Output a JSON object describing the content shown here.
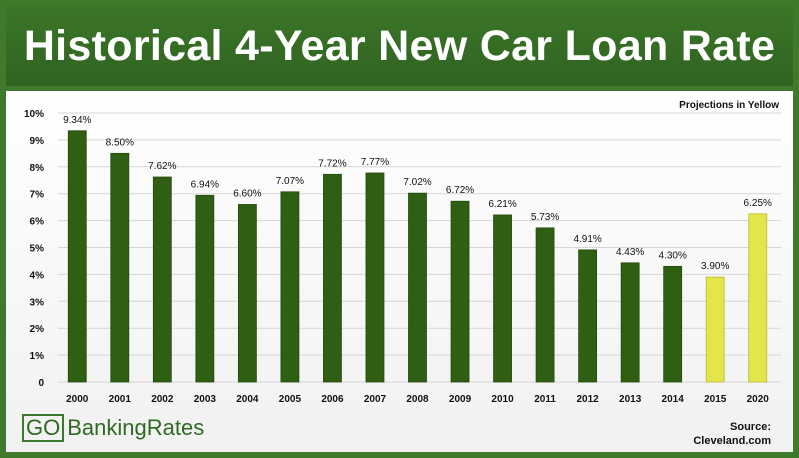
{
  "title": "Historical 4-Year New Car Loan Rate",
  "projection_note": "Projections in Yellow",
  "logo": {
    "go": "GO",
    "rest": "BankingRates"
  },
  "source": {
    "line1": "Source:",
    "line2": "Cleveland.com"
  },
  "colors": {
    "bar": "#2f5f12",
    "projection_bar": "#e3e64a",
    "banner": "#3c7629",
    "grid": "#d6d6d6"
  },
  "chart_data": {
    "type": "bar",
    "title": "Historical 4-Year New Car Loan Rate",
    "categories": [
      "2000",
      "2001",
      "2002",
      "2003",
      "2004",
      "2005",
      "2006",
      "2007",
      "2008",
      "2009",
      "2010",
      "2011",
      "2012",
      "2013",
      "2014",
      "2015",
      "2020"
    ],
    "values": [
      9.34,
      8.5,
      7.62,
      6.94,
      6.6,
      7.07,
      7.72,
      7.77,
      7.02,
      6.72,
      6.21,
      5.73,
      4.91,
      4.43,
      4.3,
      3.9,
      6.25
    ],
    "data_labels": [
      "9.34%",
      "8.50%",
      "7.62%",
      "6.94%",
      "6.60%",
      "7.07%",
      "7.72%",
      "7.77%",
      "7.02%",
      "6.72%",
      "6.21%",
      "5.73%",
      "4.91%",
      "4.43%",
      "4.30%",
      "3.90%",
      "6.25%"
    ],
    "projected": [
      false,
      false,
      false,
      false,
      false,
      false,
      false,
      false,
      false,
      false,
      false,
      false,
      false,
      false,
      false,
      true,
      true
    ],
    "y_ticks": [
      "0",
      "1%",
      "2%",
      "3%",
      "4%",
      "5%",
      "6%",
      "7%",
      "8%",
      "9%",
      "10%"
    ],
    "ylim": [
      0,
      10
    ],
    "grid": true
  }
}
